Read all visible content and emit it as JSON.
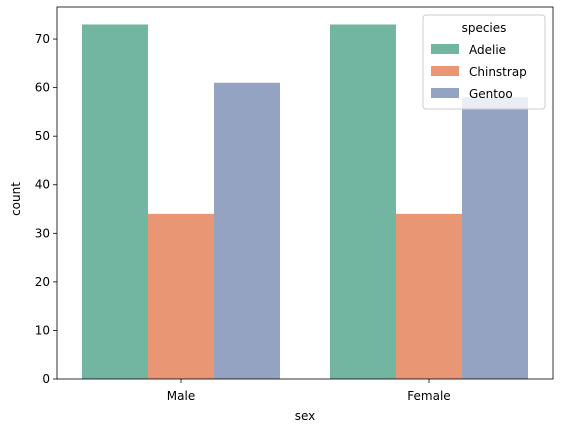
{
  "chart_data": {
    "type": "bar",
    "title": "",
    "xlabel": "sex",
    "ylabel": "count",
    "categories": [
      "Male",
      "Female"
    ],
    "series": [
      {
        "name": "Adelie",
        "values": [
          73,
          73
        ],
        "color": "#72b6a1"
      },
      {
        "name": "Chinstrap",
        "values": [
          34,
          34
        ],
        "color": "#e99675"
      },
      {
        "name": "Gentoo",
        "values": [
          61,
          58
        ],
        "color": "#95a3c3"
      }
    ],
    "ylim": [
      0,
      76.6
    ],
    "yticks": [
      0,
      10,
      20,
      30,
      40,
      50,
      60,
      70
    ],
    "legend": {
      "title": "species",
      "placement": "top-right"
    },
    "grid": false
  }
}
